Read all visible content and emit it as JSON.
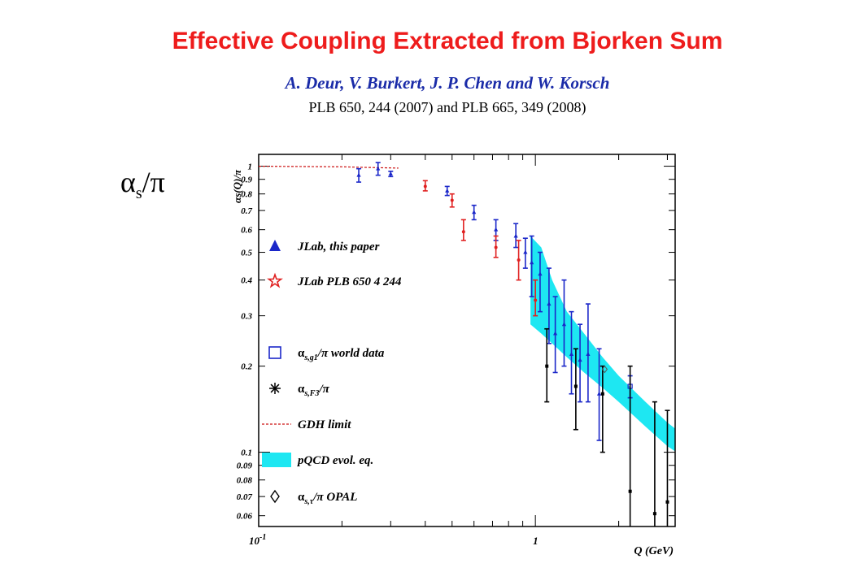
{
  "header": {
    "title": "Effective Coupling Extracted from Bjorken Sum",
    "authors": "A. Deur, V. Burkert, J. P. Chen and W. Korsch",
    "reference": "PLB 650, 244 (2007) and PLB 665, 349 (2008)"
  },
  "side_label": {
    "main": "α",
    "sub": "s",
    "tail": "/π"
  },
  "colors": {
    "title": "#ee1c1c",
    "authors": "#1a2ba8",
    "jlab": "#1b27c9",
    "plb": "#e02020",
    "band": "#1ee7f2",
    "gdh": "#cc1010"
  },
  "chart_data": {
    "type": "scatter",
    "x_scale": "log",
    "y_scale": "log",
    "xlim": [
      0.1,
      3.2
    ],
    "ylim": [
      0.055,
      1.1
    ],
    "xlabel": "Q (GeV)",
    "ylabel": "αs(Q)/π",
    "x_ticklabels": [
      {
        "v": 0.1,
        "t": "10-1"
      },
      {
        "v": 1,
        "t": "1"
      }
    ],
    "y_ticklabels": [
      "1",
      "0.9",
      "0.8",
      "0.7",
      "0.6",
      "0.5",
      "0.4",
      "0.3",
      "0.2",
      "0.1",
      "0.09",
      "0.08",
      "0.07",
      "0.06"
    ],
    "y_tickvalues": [
      1,
      0.9,
      0.8,
      0.7,
      0.6,
      0.5,
      0.4,
      0.3,
      0.2,
      0.1,
      0.09,
      0.08,
      0.07,
      0.06
    ],
    "legend_position": "left",
    "legend": [
      {
        "key": "jlab",
        "symbol": "filled-triangle-blue",
        "label": "JLab, this paper"
      },
      {
        "key": "plb",
        "symbol": "open-star-red",
        "label": "JLab PLB 650 4 244"
      },
      {
        "key": "world",
        "symbol": "open-square-blue",
        "label_main": "α",
        "label_sub": "s,g1",
        "label_rest": "/π world data"
      },
      {
        "key": "f3",
        "symbol": "asterisk-black",
        "label_main": "α",
        "label_sub": "s,F3",
        "label_rest": "/π"
      },
      {
        "key": "gdh",
        "symbol": "dashed-red",
        "label": "GDH limit"
      },
      {
        "key": "band",
        "symbol": "cyan-band",
        "label": "pQCD evol. eq."
      },
      {
        "key": "opal",
        "symbol": "open-diamond",
        "label_main": "α",
        "label_sub": "s,τ",
        "label_rest": "/π OPAL"
      }
    ],
    "series": [
      {
        "key": "jlab",
        "name": "JLab, this paper",
        "points": [
          {
            "x": 0.23,
            "y": 0.93,
            "lo": 0.88,
            "hi": 0.98
          },
          {
            "x": 0.27,
            "y": 0.98,
            "lo": 0.93,
            "hi": 1.03
          },
          {
            "x": 0.3,
            "y": 0.94,
            "lo": 0.92,
            "hi": 0.96
          },
          {
            "x": 0.48,
            "y": 0.82,
            "lo": 0.79,
            "hi": 0.85
          },
          {
            "x": 0.6,
            "y": 0.69,
            "lo": 0.65,
            "hi": 0.73
          },
          {
            "x": 0.72,
            "y": 0.6,
            "lo": 0.55,
            "hi": 0.65
          },
          {
            "x": 0.85,
            "y": 0.57,
            "lo": 0.52,
            "hi": 0.63
          },
          {
            "x": 0.92,
            "y": 0.5,
            "lo": 0.44,
            "hi": 0.56
          },
          {
            "x": 0.97,
            "y": 0.46,
            "lo": 0.35,
            "hi": 0.57
          },
          {
            "x": 1.04,
            "y": 0.42,
            "lo": 0.31,
            "hi": 0.5
          },
          {
            "x": 1.12,
            "y": 0.33,
            "lo": 0.24,
            "hi": 0.44
          },
          {
            "x": 1.18,
            "y": 0.26,
            "lo": 0.19,
            "hi": 0.35
          },
          {
            "x": 1.27,
            "y": 0.28,
            "lo": 0.2,
            "hi": 0.4
          },
          {
            "x": 1.35,
            "y": 0.22,
            "lo": 0.16,
            "hi": 0.31
          },
          {
            "x": 1.45,
            "y": 0.21,
            "lo": 0.15,
            "hi": 0.28
          },
          {
            "x": 1.55,
            "y": 0.22,
            "lo": 0.15,
            "hi": 0.33
          },
          {
            "x": 1.7,
            "y": 0.16,
            "lo": 0.11,
            "hi": 0.23
          }
        ]
      },
      {
        "key": "plb",
        "name": "JLab PLB 650 4 244",
        "points": [
          {
            "x": 0.4,
            "y": 0.85,
            "lo": 0.82,
            "hi": 0.89
          },
          {
            "x": 0.5,
            "y": 0.76,
            "lo": 0.72,
            "hi": 0.8
          },
          {
            "x": 0.55,
            "y": 0.59,
            "lo": 0.55,
            "hi": 0.65
          },
          {
            "x": 0.72,
            "y": 0.52,
            "lo": 0.48,
            "hi": 0.57
          },
          {
            "x": 0.87,
            "y": 0.47,
            "lo": 0.4,
            "hi": 0.55
          },
          {
            "x": 1.0,
            "y": 0.34,
            "lo": 0.3,
            "hi": 0.4
          }
        ]
      },
      {
        "key": "world",
        "name": "αs,g1/π world data",
        "points": [
          {
            "x": 2.2,
            "y": 0.17,
            "lo": 0.155,
            "hi": 0.185
          }
        ]
      },
      {
        "key": "f3",
        "name": "αs,F3/π",
        "points": [
          {
            "x": 1.1,
            "y": 0.2,
            "lo": 0.15,
            "hi": 0.27
          },
          {
            "x": 1.4,
            "y": 0.17,
            "lo": 0.12,
            "hi": 0.23
          },
          {
            "x": 1.75,
            "y": 0.16,
            "lo": 0.1,
            "hi": 0.2
          },
          {
            "x": 2.2,
            "y": 0.073,
            "lo": 0.053,
            "hi": 0.2
          },
          {
            "x": 2.7,
            "y": 0.061,
            "lo": 0.053,
            "hi": 0.15
          },
          {
            "x": 3.0,
            "y": 0.067,
            "lo": 0.053,
            "hi": 0.14
          }
        ]
      },
      {
        "key": "opal",
        "name": "αs,τ/π OPAL",
        "points": [
          {
            "x": 1.78,
            "y": 0.195,
            "lo": 0.19,
            "hi": 0.2
          }
        ]
      },
      {
        "key": "gdh",
        "name": "GDH limit",
        "line": [
          [
            0.1,
            1.0
          ],
          [
            0.2,
            0.995
          ],
          [
            0.25,
            0.99
          ],
          [
            0.32,
            0.985
          ]
        ]
      },
      {
        "key": "band",
        "name": "pQCD evol. eq.",
        "band": [
          {
            "x": 0.96,
            "lo": 0.28,
            "hi": 0.57
          },
          {
            "x": 1.05,
            "lo": 0.26,
            "hi": 0.52
          },
          {
            "x": 1.15,
            "lo": 0.24,
            "hi": 0.4
          },
          {
            "x": 1.3,
            "lo": 0.215,
            "hi": 0.31
          },
          {
            "x": 1.5,
            "lo": 0.19,
            "hi": 0.26
          },
          {
            "x": 1.75,
            "lo": 0.168,
            "hi": 0.215
          },
          {
            "x": 2.0,
            "lo": 0.15,
            "hi": 0.185
          },
          {
            "x": 2.5,
            "lo": 0.123,
            "hi": 0.15
          },
          {
            "x": 3.0,
            "lo": 0.105,
            "hi": 0.127
          },
          {
            "x": 3.5,
            "lo": 0.095,
            "hi": 0.113
          },
          {
            "x": 4.0,
            "lo": 0.086,
            "hi": 0.103
          },
          {
            "x": 5.0,
            "lo": 0.077,
            "hi": 0.09
          },
          {
            "x": 7.0,
            "lo": 0.068,
            "hi": 0.078
          }
        ]
      }
    ]
  }
}
